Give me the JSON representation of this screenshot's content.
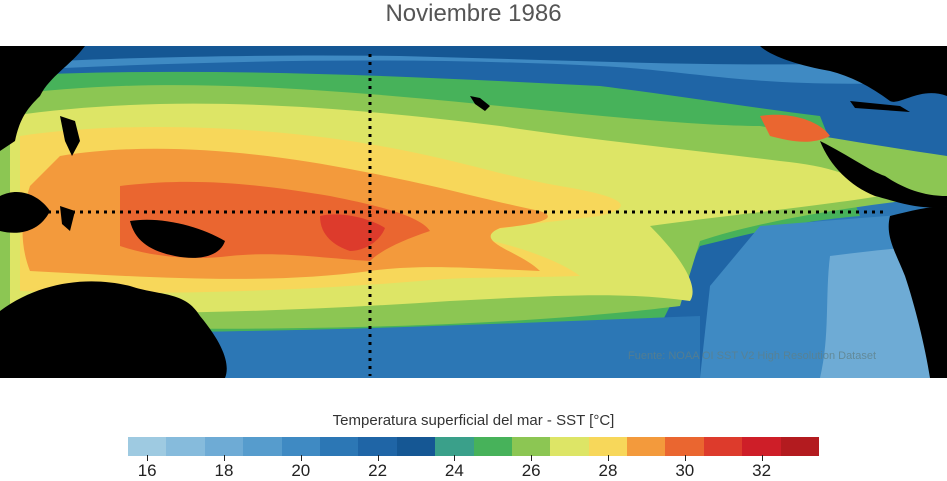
{
  "title": "Noviembre 1986",
  "source": "Fuente: NOAA OI SST V2 High Resolution Dataset",
  "colorbar": {
    "label": "Temperatura superficial del mar - SST  [°C]",
    "colors": [
      "#9ecae1",
      "#86bbdc",
      "#6eabd5",
      "#569ccd",
      "#3f8ac3",
      "#2c77b5",
      "#1f65a6",
      "#155794",
      "#3aa08a",
      "#47b25a",
      "#8cc653",
      "#dde566",
      "#f7d75a",
      "#f39a3c",
      "#ea6630",
      "#dd3b2c",
      "#ce1e28",
      "#b31b1f"
    ],
    "ticks": [
      16,
      18,
      20,
      22,
      24,
      26,
      28,
      30,
      32
    ]
  },
  "map": {
    "equator": "dotted-line",
    "meridian": "dotted-line",
    "land_color": "#000000"
  }
}
